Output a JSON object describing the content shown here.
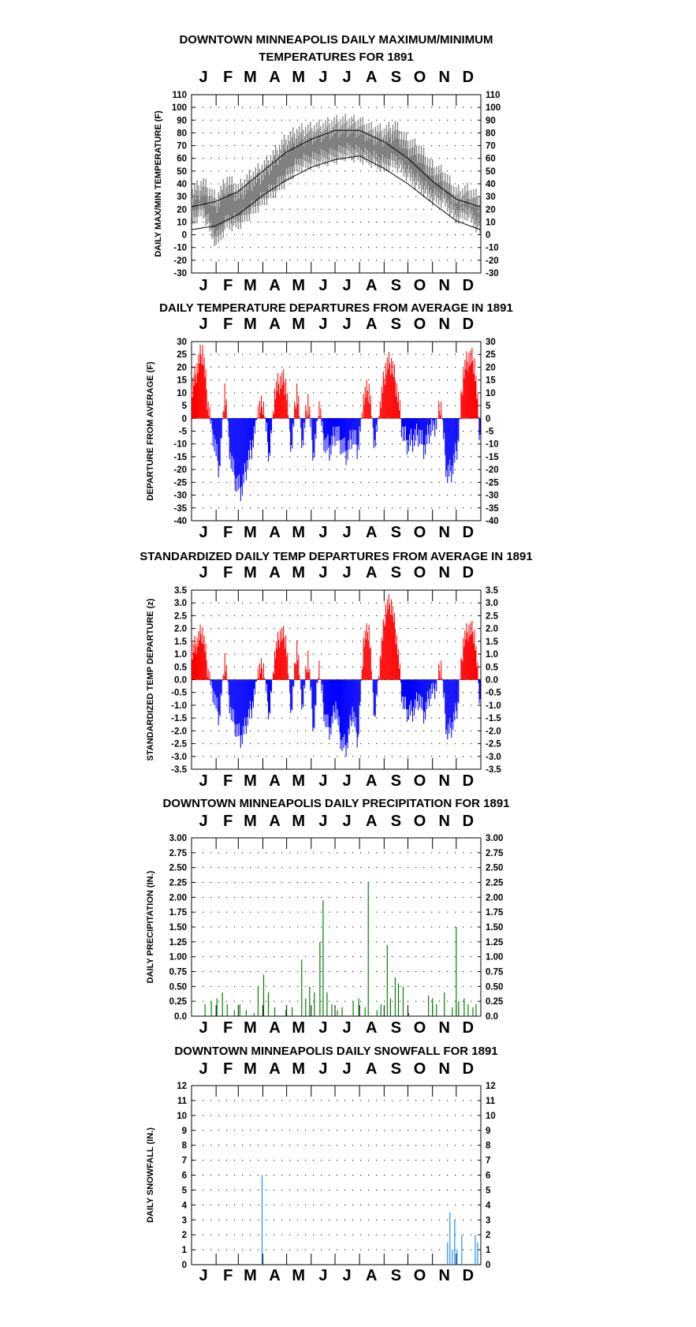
{
  "chart_data": [
    {
      "type": "line",
      "title": "DOWNTOWN MINNEAPOLIS DAILY MAXIMUM/MINIMUM",
      "title2": "TEMPERATURES FOR 1891",
      "ylabel": "DAILY MAX/MIN TEMPERATURE (F)",
      "ylim": [
        -30,
        110
      ],
      "yticks": [
        "110",
        "100",
        "90",
        "80",
        "70",
        "60",
        "50",
        "40",
        "30",
        "20",
        "10",
        "0",
        "-10",
        "-20",
        "-30"
      ],
      "months": [
        "J",
        "F",
        "M",
        "A",
        "M",
        "J",
        "J",
        "A",
        "S",
        "O",
        "N",
        "D"
      ],
      "grid": true,
      "colors": {
        "observed": "#808080",
        "normals": "#000000"
      },
      "series": [
        {
          "name": "",
          "role": "max_anchor_values",
          "days": [
            1,
            15,
            32,
            46,
            60,
            74,
            91,
            105,
            121,
            135,
            152,
            166,
            182,
            196,
            213,
            227,
            244,
            258,
            274,
            288,
            305,
            319,
            335,
            349,
            365
          ],
          "values": [
            30,
            38,
            25,
            40,
            33,
            42,
            50,
            60,
            72,
            78,
            80,
            82,
            85,
            86,
            85,
            80,
            78,
            82,
            70,
            65,
            50,
            45,
            30,
            32,
            25
          ]
        },
        {
          "name": "",
          "role": "min_anchor_values",
          "days": [
            1,
            15,
            32,
            46,
            60,
            74,
            91,
            105,
            121,
            135,
            152,
            166,
            182,
            196,
            213,
            227,
            244,
            258,
            274,
            288,
            305,
            319,
            335,
            349,
            365
          ],
          "values": [
            12,
            20,
            -5,
            10,
            10,
            18,
            28,
            35,
            45,
            55,
            58,
            60,
            62,
            65,
            63,
            60,
            55,
            58,
            48,
            40,
            30,
            28,
            15,
            18,
            5
          ]
        },
        {
          "name": "",
          "role": "normal_high",
          "days": [
            1,
            31,
            60,
            91,
            121,
            152,
            182,
            213,
            244,
            274,
            305,
            335,
            365
          ],
          "values": [
            22,
            26,
            34,
            50,
            65,
            75,
            82,
            82,
            73,
            60,
            42,
            28,
            22
          ]
        },
        {
          "name": "",
          "role": "normal_low",
          "days": [
            1,
            31,
            60,
            91,
            121,
            152,
            182,
            213,
            244,
            274,
            305,
            335,
            365
          ],
          "values": [
            4,
            7,
            16,
            31,
            43,
            53,
            59,
            62,
            52,
            40,
            25,
            11,
            4
          ]
        }
      ]
    },
    {
      "type": "bar",
      "title": "DAILY TEMPERATURE DEPARTURES FROM AVERAGE IN 1891",
      "ylabel": "DEPARTURE FROM AVERAGE (F)",
      "ylim": [
        -40,
        30
      ],
      "yticks": [
        "30",
        "25",
        "20",
        "15",
        "10",
        "5",
        "0",
        "-5",
        "-10",
        "-15",
        "-20",
        "-25",
        "-30",
        "-35",
        "-40"
      ],
      "months": [
        "J",
        "F",
        "M",
        "A",
        "M",
        "J",
        "J",
        "A",
        "S",
        "O",
        "N",
        "D"
      ],
      "grid": true,
      "colors": {
        "positive": "#ff0000",
        "negative": "#0000ff"
      },
      "days": [
        1,
        8,
        15,
        22,
        29,
        36,
        43,
        50,
        57,
        64,
        71,
        78,
        85,
        92,
        99,
        106,
        113,
        120,
        127,
        134,
        141,
        148,
        155,
        162,
        169,
        176,
        183,
        190,
        197,
        204,
        211,
        218,
        225,
        232,
        239,
        246,
        253,
        260,
        267,
        274,
        281,
        288,
        295,
        302,
        309,
        316,
        323,
        330,
        337,
        344,
        351,
        358,
        365
      ],
      "values": [
        10,
        20,
        27,
        5,
        -8,
        -20,
        12,
        -15,
        -25,
        -28,
        -18,
        -10,
        3,
        5,
        -15,
        10,
        15,
        14,
        -12,
        12,
        -10,
        8,
        -15,
        5,
        -10,
        -12,
        -5,
        -10,
        -14,
        -6,
        -12,
        8,
        12,
        -10,
        5,
        20,
        22,
        12,
        -5,
        -10,
        -8,
        -6,
        -12,
        -4,
        -2,
        5,
        -22,
        -20,
        -10,
        18,
        24,
        22,
        -8
      ]
    },
    {
      "type": "bar",
      "title": "STANDARDIZED DAILY TEMP DEPARTURES FROM AVERAGE IN 1891",
      "ylabel": "STANDARDIZED TEMP DEPARTURE (z)",
      "ylim": [
        -3.5,
        3.5
      ],
      "yticks": [
        "3.5",
        "3.0",
        "2.5",
        "2.0",
        "1.5",
        "1.0",
        "0.5",
        "0.0",
        "-0.5",
        "-1.0",
        "-1.5",
        "-2.0",
        "-2.5",
        "-3.0",
        "-3.5"
      ],
      "months": [
        "J",
        "F",
        "M",
        "A",
        "M",
        "J",
        "J",
        "A",
        "S",
        "O",
        "N",
        "D"
      ],
      "grid": true,
      "colors": {
        "positive": "#ff0000",
        "negative": "#0000ff"
      },
      "days": [
        1,
        8,
        15,
        22,
        29,
        36,
        43,
        50,
        57,
        64,
        71,
        78,
        85,
        92,
        99,
        106,
        113,
        120,
        127,
        134,
        141,
        148,
        155,
        162,
        169,
        176,
        183,
        190,
        197,
        204,
        211,
        218,
        225,
        232,
        239,
        246,
        253,
        260,
        267,
        274,
        281,
        288,
        295,
        302,
        309,
        316,
        323,
        330,
        337,
        344,
        351,
        358,
        365
      ],
      "values": [
        1.0,
        1.5,
        1.9,
        0.3,
        -0.6,
        -1.5,
        0.9,
        -1.2,
        -1.9,
        -2.3,
        -1.6,
        -1.0,
        0.3,
        0.5,
        -1.4,
        1.0,
        1.8,
        1.6,
        -1.3,
        1.4,
        -1.1,
        1.0,
        -2.0,
        0.6,
        -1.5,
        -2.0,
        -1.0,
        -2.5,
        -2.6,
        -1.2,
        -2.4,
        1.5,
        2.0,
        -1.5,
        0.8,
        2.8,
        3.0,
        1.6,
        -0.8,
        -1.3,
        -1.2,
        -0.7,
        -1.4,
        -0.5,
        -0.3,
        0.6,
        -2.1,
        -1.8,
        -1.0,
        1.5,
        2.0,
        1.8,
        -0.9
      ]
    },
    {
      "type": "bar",
      "title": "DOWNTOWN MINNEAPOLIS DAILY PRECIPITATION FOR 1891",
      "ylabel": "DAILY PRECIPITATION (IN.)",
      "ylim": [
        0,
        3
      ],
      "yticks": [
        "3.00",
        "2.75",
        "2.50",
        "2.25",
        "2.00",
        "1.75",
        "1.50",
        "1.25",
        "1.00",
        "0.75",
        "0.50",
        "0.25",
        "0.0"
      ],
      "months": [
        "J",
        "F",
        "M",
        "A",
        "M",
        "J",
        "J",
        "A",
        "S",
        "O",
        "N",
        "D"
      ],
      "grid": true,
      "colors": {
        "bars": "#008000"
      },
      "days": [
        1,
        18,
        26,
        33,
        40,
        46,
        55,
        62,
        70,
        80,
        85,
        92,
        98,
        106,
        120,
        128,
        140,
        145,
        150,
        156,
        163,
        167,
        172,
        178,
        185,
        191,
        205,
        212,
        220,
        224,
        235,
        240,
        248,
        252,
        258,
        262,
        268,
        275,
        300,
        305,
        310,
        320,
        330,
        335,
        338,
        345,
        350,
        356,
        360
      ],
      "values": [
        0.48,
        0.2,
        0.25,
        0.3,
        0.4,
        0.2,
        0.1,
        0.2,
        0.1,
        0.05,
        0.5,
        0.7,
        0.4,
        0.15,
        0.1,
        0.15,
        0.95,
        0.3,
        0.5,
        0.4,
        1.25,
        1.95,
        0.4,
        0.2,
        0.1,
        0.15,
        0.25,
        0.3,
        0.15,
        2.25,
        0.1,
        0.2,
        1.2,
        0.3,
        0.65,
        0.55,
        0.5,
        0.05,
        0.35,
        0.3,
        0.2,
        0.4,
        0.15,
        1.5,
        0.25,
        0.3,
        0.2,
        0.15,
        0.2
      ]
    },
    {
      "type": "bar",
      "title": "DOWNTOWN MINNEAPOLIS DAILY SNOWFALL FOR 1891",
      "ylabel": "DAILY SNOWFALL (IN.)",
      "ylim": [
        0,
        12
      ],
      "yticks": [
        "12",
        "11",
        "10",
        "9",
        "8",
        "7",
        "6",
        "5",
        "4",
        "3",
        "2",
        "1",
        "0"
      ],
      "months": [
        "J",
        "F",
        "M",
        "A",
        "M",
        "J",
        "J",
        "A",
        "S",
        "O",
        "N",
        "D"
      ],
      "grid": true,
      "colors": {
        "bars": "#1e90ff"
      },
      "days": [
        90,
        324,
        327,
        330,
        333,
        336,
        342,
        359,
        362
      ],
      "values": [
        6,
        1.5,
        3.5,
        1,
        3,
        1,
        2,
        2,
        1.5
      ]
    }
  ]
}
